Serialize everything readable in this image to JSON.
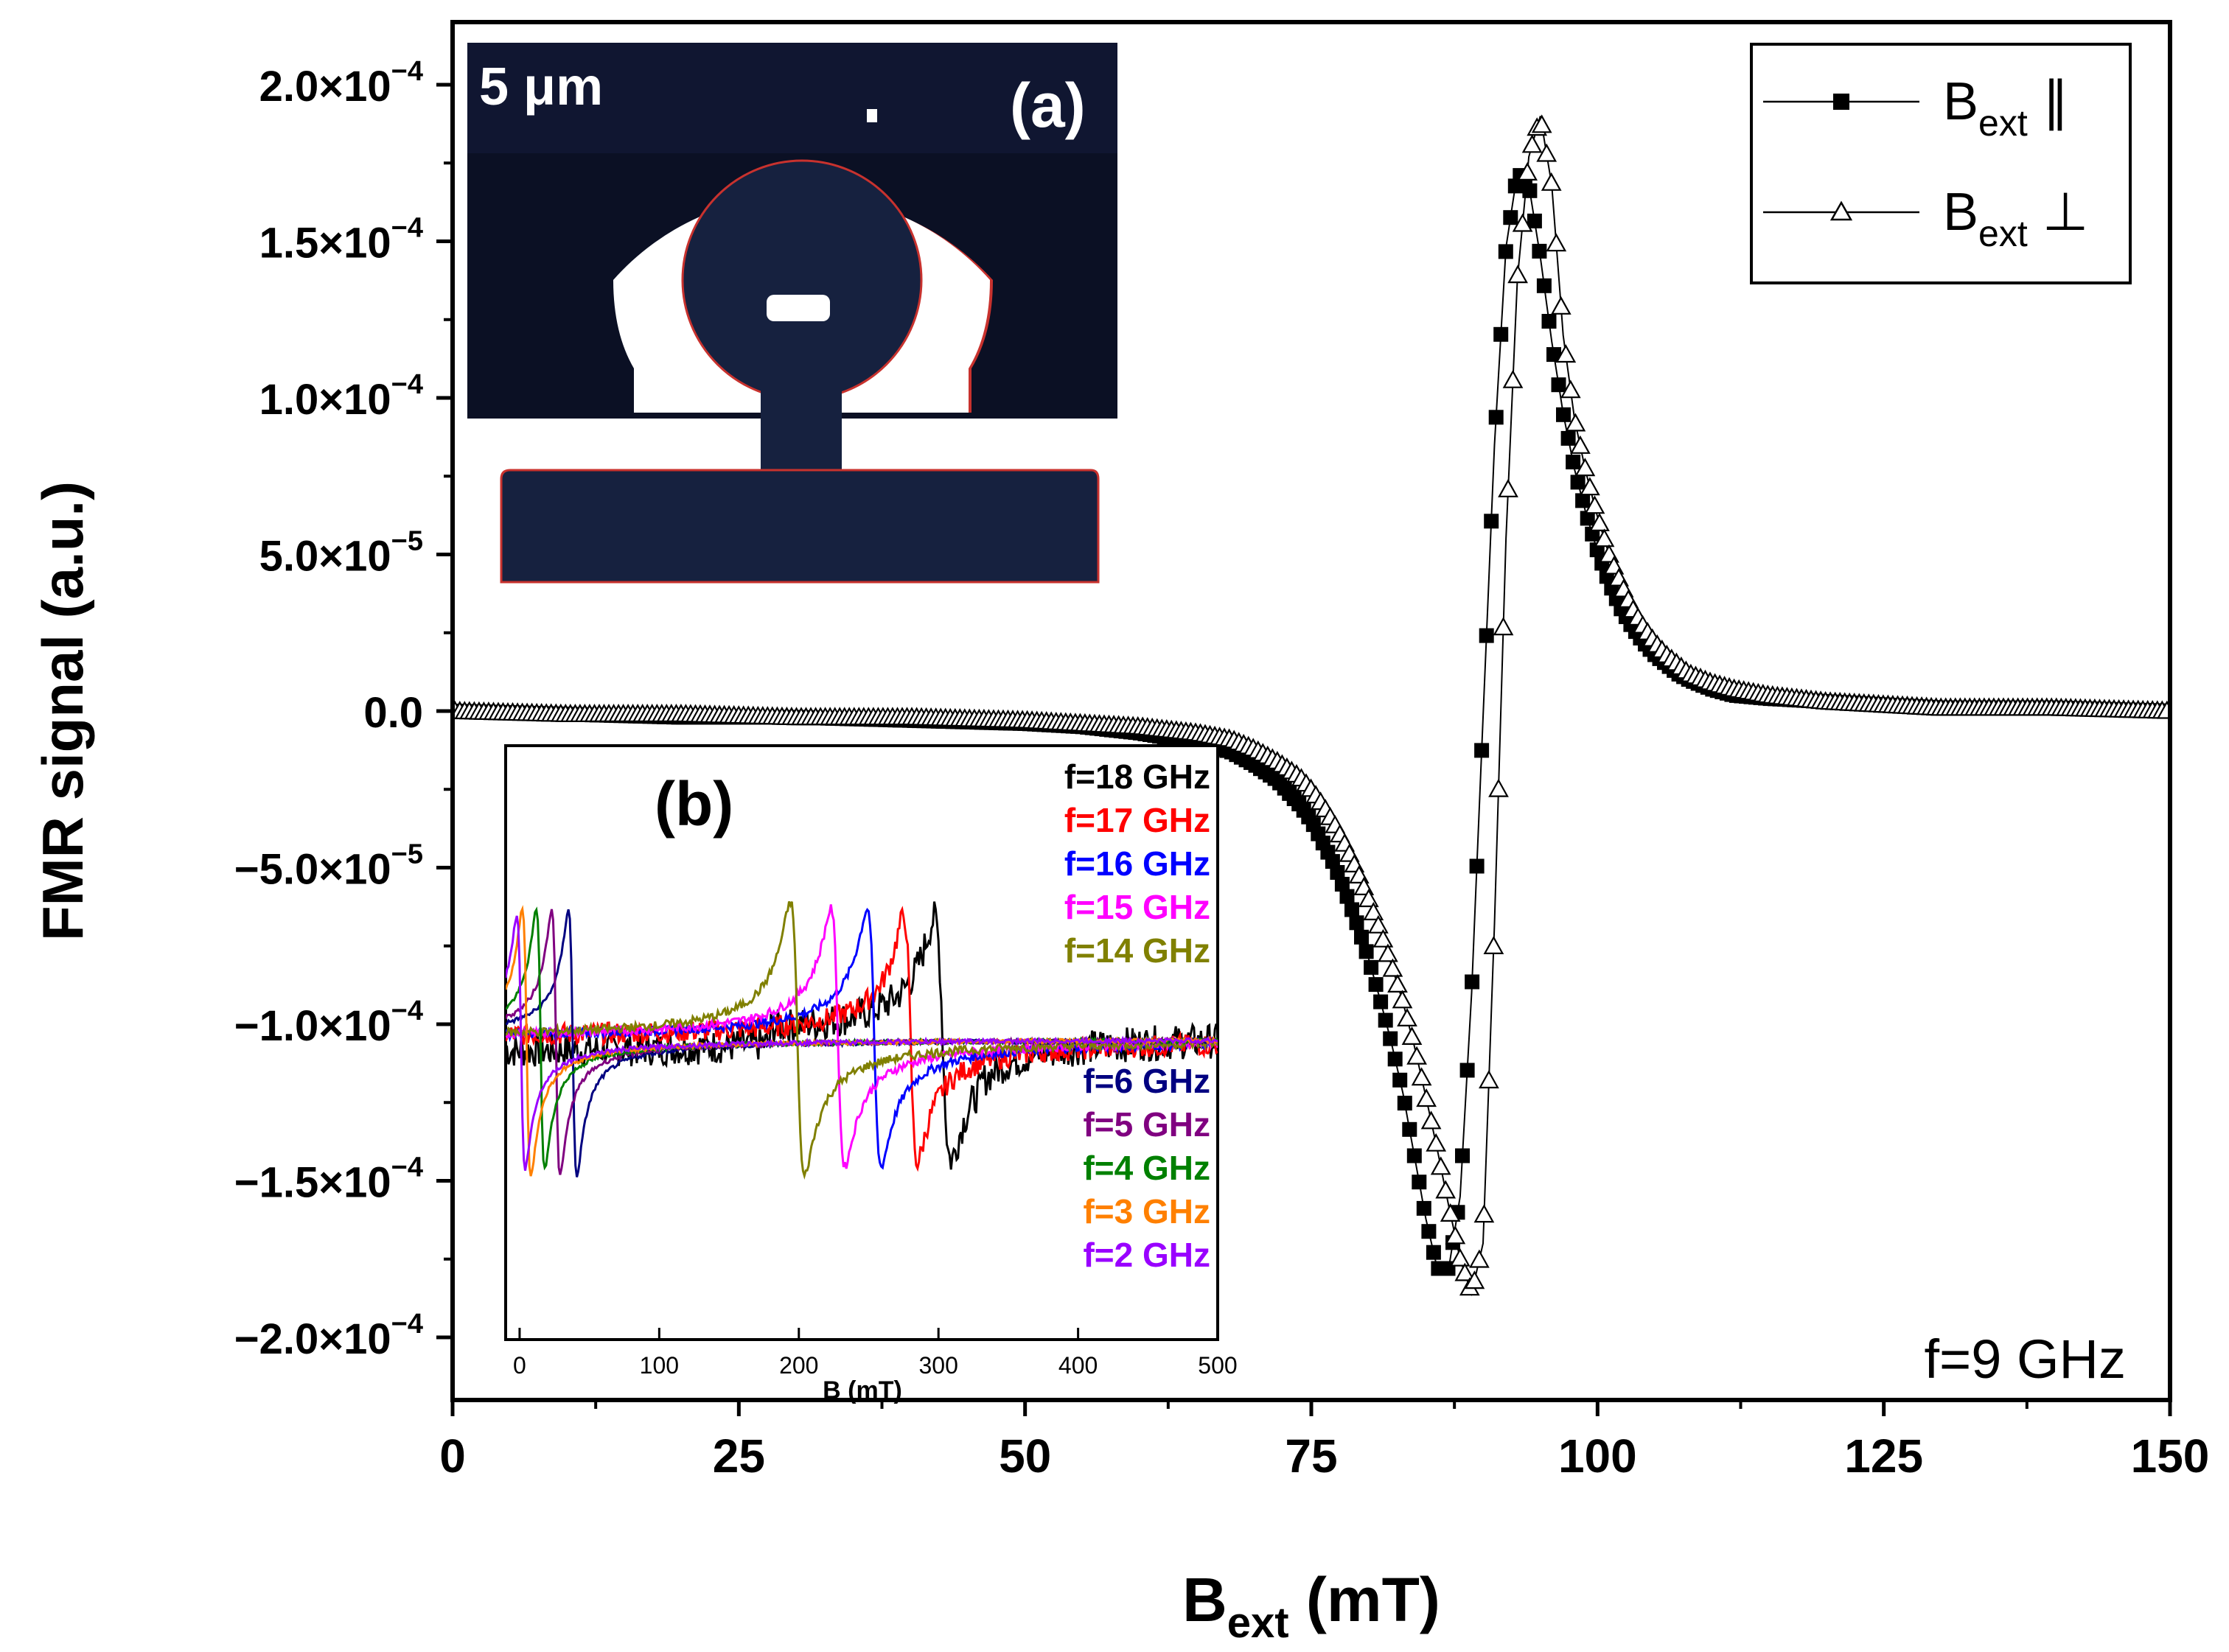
{
  "chart_data": [
    {
      "id": "main",
      "type": "scatter",
      "title": "",
      "ylabel": "FMR signal (a.u.)",
      "xlabel": {
        "base": "B",
        "sub": "ext",
        "unit": " (mT)"
      },
      "xlim": [
        0,
        150
      ],
      "ylim": [
        -0.00022,
        0.00022
      ],
      "x_ticks": [
        "0",
        "25",
        "50",
        "75",
        "100",
        "125",
        "150"
      ],
      "x_tick_values": [
        0,
        25,
        50,
        75,
        100,
        125,
        150
      ],
      "y_ticks": [
        {
          "value": 0.0002,
          "mant": "2.0×10",
          "exp": "−4"
        },
        {
          "value": 0.00015,
          "mant": "1.5×10",
          "exp": "−4"
        },
        {
          "value": 0.0001,
          "mant": "1.0×10",
          "exp": "−4"
        },
        {
          "value": 5e-05,
          "mant": "5.0×10",
          "exp": "−5"
        },
        {
          "value": 0,
          "mant": "0.0",
          "exp": ""
        },
        {
          "value": -5e-05,
          "mant": "−5.0×10",
          "exp": "−5"
        },
        {
          "value": -0.0001,
          "mant": "−1.0×10",
          "exp": "−4"
        },
        {
          "value": -0.00015,
          "mant": "−1.5×10",
          "exp": "−4"
        },
        {
          "value": -0.0002,
          "mant": "−2.0×10",
          "exp": "−4"
        }
      ],
      "annotation": "f=9 GHz",
      "series": [
        {
          "name": "Bext ∥",
          "legend": {
            "base": "B",
            "sub": "ext",
            "sym": " ∥"
          },
          "marker": "filled-square",
          "color": "#000000",
          "x": [
            0,
            10,
            20,
            30,
            40,
            50,
            55,
            60,
            65,
            68,
            70,
            72,
            74,
            75,
            76,
            77,
            78,
            79,
            80,
            81,
            82,
            83,
            84,
            85,
            86,
            87,
            88,
            89,
            90,
            91,
            92,
            93,
            94,
            95,
            96,
            97,
            98,
            99,
            100,
            101,
            102,
            103,
            104,
            105,
            106,
            107,
            108,
            110,
            112,
            115,
            120,
            125,
            130,
            140,
            150
          ],
          "y": [
            0,
            -1e-06,
            -2e-06,
            -2e-06,
            -3e-06,
            -4e-06,
            -5e-06,
            -7e-06,
            -1e-05,
            -1.3e-05,
            -1.7e-05,
            -2.2e-05,
            -3e-05,
            -3.5e-05,
            -4.2e-05,
            -4.9e-05,
            -5.8e-05,
            -6.8e-05,
            -7.9e-05,
            -9.2e-05,
            -0.000106,
            -0.000122,
            -0.000142,
            -0.000162,
            -0.000178,
            -0.000178,
            -0.000155,
            -9e-05,
            -2e-06,
            8.5e-05,
            0.000148,
            0.000172,
            0.000168,
            0.000145,
            0.000118,
            9.5e-05,
            7.7e-05,
            6.3e-05,
            5.1e-05,
            4.1e-05,
            3.3e-05,
            2.7e-05,
            2.2e-05,
            1.8e-05,
            1.5e-05,
            1.2e-05,
            1e-05,
            7e-06,
            5e-06,
            4e-06,
            3e-06,
            2e-06,
            1e-06,
            1e-06,
            0
          ]
        },
        {
          "name": "Bext ⊥",
          "legend": {
            "base": "B",
            "sub": "ext",
            "sym": " ⊥"
          },
          "marker": "open-triangle",
          "color": "#000000",
          "x": [
            0,
            10,
            20,
            30,
            40,
            50,
            55,
            60,
            65,
            68,
            70,
            72,
            74,
            75,
            76,
            77,
            78,
            79,
            80,
            81,
            82,
            83,
            84,
            85,
            86,
            87,
            88,
            89,
            90,
            91,
            92,
            93,
            94,
            95,
            96,
            97,
            98,
            99,
            100,
            101,
            102,
            103,
            104,
            105,
            106,
            107,
            108,
            110,
            112,
            115,
            120,
            125,
            130,
            140,
            150
          ],
          "y": [
            0,
            -1e-06,
            -1e-06,
            -2e-06,
            -2e-06,
            -3e-06,
            -4e-06,
            -5e-06,
            -7e-06,
            -9e-06,
            -1.2e-05,
            -1.6e-05,
            -2.1e-05,
            -2.5e-05,
            -3e-05,
            -3.6e-05,
            -4.3e-05,
            -5.1e-05,
            -6e-05,
            -7e-05,
            -8.1e-05,
            -9.3e-05,
            -0.000107,
            -0.000123,
            -0.00014,
            -0.000158,
            -0.000175,
            -0.000186,
            -0.00017,
            -6.8e-05,
            5.5e-05,
            0.000138,
            0.000177,
            0.00019,
            0.000168,
            0.00012,
            9.3e-05,
            7.6e-05,
            6.2e-05,
            5e-05,
            4.1e-05,
            3.3e-05,
            2.7e-05,
            2.2e-05,
            1.8e-05,
            1.5e-05,
            1.2e-05,
            9e-06,
            7e-06,
            5e-06,
            3e-06,
            2e-06,
            1e-06,
            1e-06,
            0
          ]
        }
      ]
    },
    {
      "id": "inset-b",
      "type": "line",
      "panel_label": "(b)",
      "xlabel": "B (mT)",
      "xlim": [
        -10,
        500
      ],
      "ylim": [
        -1.15,
        1.15
      ],
      "x_ticks": [
        "0",
        "100",
        "200",
        "300",
        "400",
        "500"
      ],
      "x_tick_values": [
        0,
        100,
        200,
        300,
        400,
        500
      ],
      "series": [
        {
          "name": "f=18 GHz",
          "color": "#000000",
          "resonance": 303,
          "width": 6,
          "up": 0.88,
          "down": 0.88,
          "noise": 0.08
        },
        {
          "name": "f=17 GHz",
          "color": "#ff0000",
          "resonance": 280,
          "width": 5,
          "up": 0.9,
          "down": 0.9,
          "noise": 0.05
        },
        {
          "name": "f=16 GHz",
          "color": "#0000ff",
          "resonance": 254,
          "width": 5,
          "up": 0.95,
          "down": 0.93,
          "noise": 0.02
        },
        {
          "name": "f=15 GHz",
          "color": "#ff00ff",
          "resonance": 228,
          "width": 5,
          "up": 0.95,
          "down": 0.93,
          "noise": 0.02
        },
        {
          "name": "f=14 GHz",
          "color": "#808000",
          "resonance": 199,
          "width": 5,
          "up": 1.0,
          "down": 1.0,
          "noise": 0.02
        },
        {
          "name": "f=6 GHz",
          "color": "#000080",
          "resonance": 38,
          "width": 3,
          "up": 0.95,
          "down": 1.0,
          "noise": 0.01
        },
        {
          "name": "f=5 GHz",
          "color": "#800080",
          "resonance": 26,
          "width": 3,
          "up": 0.95,
          "down": 1.0,
          "noise": 0.01
        },
        {
          "name": "f=4 GHz",
          "color": "#008000",
          "resonance": 15,
          "width": 3,
          "up": 0.95,
          "down": 0.95,
          "noise": 0.01
        },
        {
          "name": "f=3 GHz",
          "color": "#ff8000",
          "resonance": 5,
          "width": 3,
          "up": 0.95,
          "down": 1.0,
          "noise": 0.01
        },
        {
          "name": "f=2 GHz",
          "color": "#9900ff",
          "resonance": 1,
          "width": 3,
          "up": 0.9,
          "down": 0.95,
          "noise": 0.01
        }
      ]
    }
  ],
  "inset_a": {
    "panel_label": "(a)",
    "scale_label": "5 μm"
  }
}
